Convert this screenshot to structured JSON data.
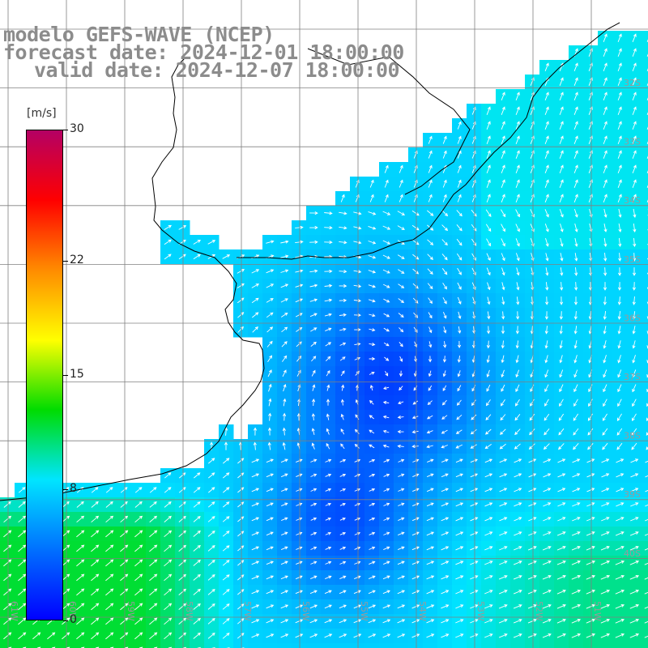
{
  "title": {
    "line1": "modelo GEFS-WAVE (NCEP)",
    "line2": "forecast date: 2024-12-01 18:00:00",
    "line3": "valid date: 2024-12-07 18:00:00"
  },
  "colorbar": {
    "unit": "[m/s]",
    "ticks": [
      "30",
      "22",
      "15",
      "8",
      "0"
    ],
    "tick_values": [
      30,
      22,
      15,
      8,
      0
    ],
    "range": [
      0,
      30
    ],
    "colors": [
      "#0000ff",
      "#0070ff",
      "#00e5ff",
      "#00dc00",
      "#ffff00",
      "#ff8c00",
      "#ff0000",
      "#b40064"
    ]
  },
  "map": {
    "latitude_labels": [
      "32S",
      "33S",
      "34S",
      "35S",
      "36S",
      "37S",
      "38S",
      "39S",
      "40S"
    ],
    "longitude_labels": [
      "61W",
      "60W",
      "59W",
      "58W",
      "57W",
      "56W",
      "55W",
      "54W",
      "53W",
      "52W",
      "51W"
    ],
    "land_color": "#ffffff",
    "grid_color": "#808080",
    "coast_color": "#000000"
  }
}
